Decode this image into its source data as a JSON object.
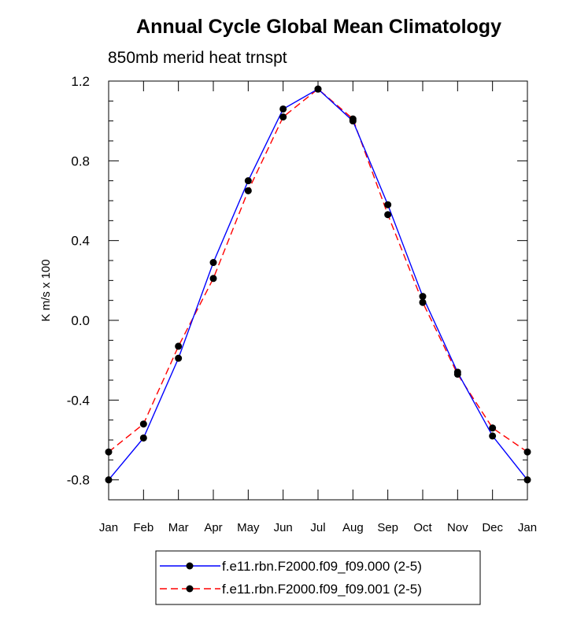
{
  "chart_data": {
    "type": "line",
    "title": "Annual Cycle Global Mean Climatology",
    "subtitle": "850mb merid heat trnspt",
    "xlabel": "",
    "ylabel": "K m/s x 100",
    "categories": [
      "Jan",
      "Feb",
      "Mar",
      "Apr",
      "May",
      "Jun",
      "Jul",
      "Aug",
      "Sep",
      "Oct",
      "Nov",
      "Dec",
      "Jan"
    ],
    "ylim": [
      -0.9,
      1.2
    ],
    "yticks": [
      -0.8,
      -0.4,
      0.0,
      0.4,
      0.8,
      1.2
    ],
    "ytick_labels": [
      "-0.8",
      "-0.4",
      "0.0",
      "0.4",
      "0.8",
      "1.2"
    ],
    "grid": false,
    "legend_position": "bottom",
    "series": [
      {
        "name": "f.e11.rbn.F2000.f09_f09.000 (2-5)",
        "color": "#0000ff",
        "dash": "solid",
        "values": [
          -0.8,
          -0.59,
          -0.19,
          0.29,
          0.7,
          1.06,
          1.16,
          1.0,
          0.58,
          0.12,
          -0.26,
          -0.58,
          -0.8
        ]
      },
      {
        "name": "f.e11.rbn.F2000.f09_f09.001 (2-5)",
        "color": "#ff0000",
        "dash": "dashed",
        "values": [
          -0.66,
          -0.52,
          -0.13,
          0.21,
          0.65,
          1.02,
          1.16,
          1.01,
          0.53,
          0.09,
          -0.27,
          -0.54,
          -0.66
        ]
      }
    ]
  }
}
